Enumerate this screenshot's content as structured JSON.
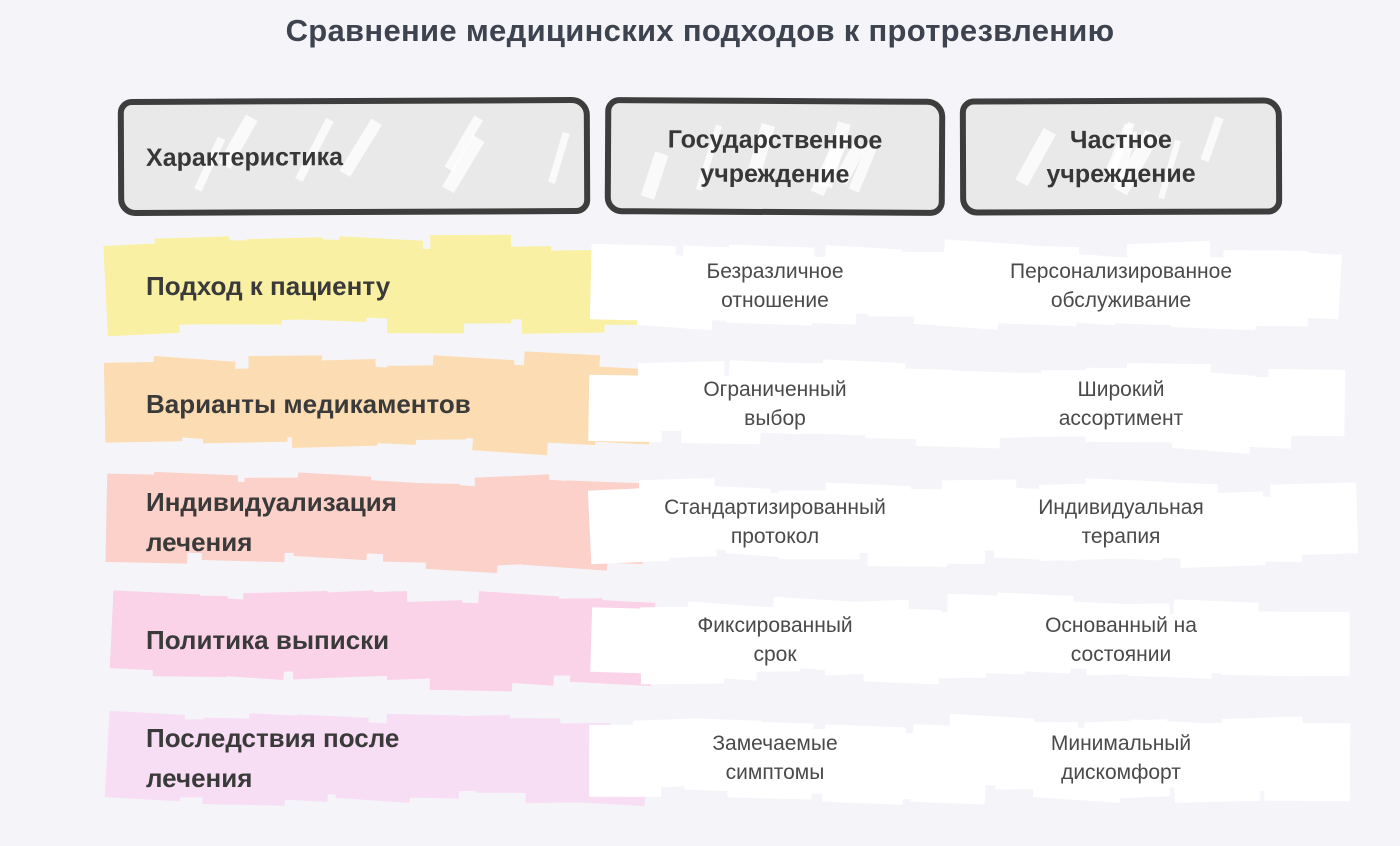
{
  "title": "Сравнение медицинских подходов к протрезвлению",
  "table": {
    "columns": [
      {
        "label": "Характеристика"
      },
      {
        "label": "Государственное\nучреждение"
      },
      {
        "label": "Частное\nучреждение"
      }
    ],
    "rows": [
      {
        "feature": "Подход к пациенту",
        "state": "Безразличное\nотношение",
        "private": "Персонализированное\nобслуживание",
        "color": "#f9f0a3"
      },
      {
        "feature": "Варианты медикаментов",
        "state": "Ограниченный\nвыбор",
        "private": "Широкий\nассортимент",
        "color": "#fcdcb2"
      },
      {
        "feature": "Индивидуализация\nлечения",
        "state": "Стандартизированный\nпротокол",
        "private": "Индивидуальная\nтерапия",
        "color": "#fbd1ca"
      },
      {
        "feature": "Политика выписки",
        "state": "Фиксированный\nсрок",
        "private": "Основанный на\nсостоянии",
        "color": "#fad3e8"
      },
      {
        "feature": "Последствия после\nлечения",
        "state": "Замечаемые\nсимптомы",
        "private": "Минимальный\nдискомфорт",
        "color": "#f8def5"
      }
    ]
  },
  "colors": {
    "page_background": "#f5f5f9",
    "title_text": "#3e4350",
    "header_fill": "#e9e9e9",
    "header_border": "#3d3d3d",
    "header_text": "#373737",
    "feature_text": "#3a3a3a",
    "value_text": "#4a4a4a",
    "cell_scribble": "#ffffff"
  }
}
